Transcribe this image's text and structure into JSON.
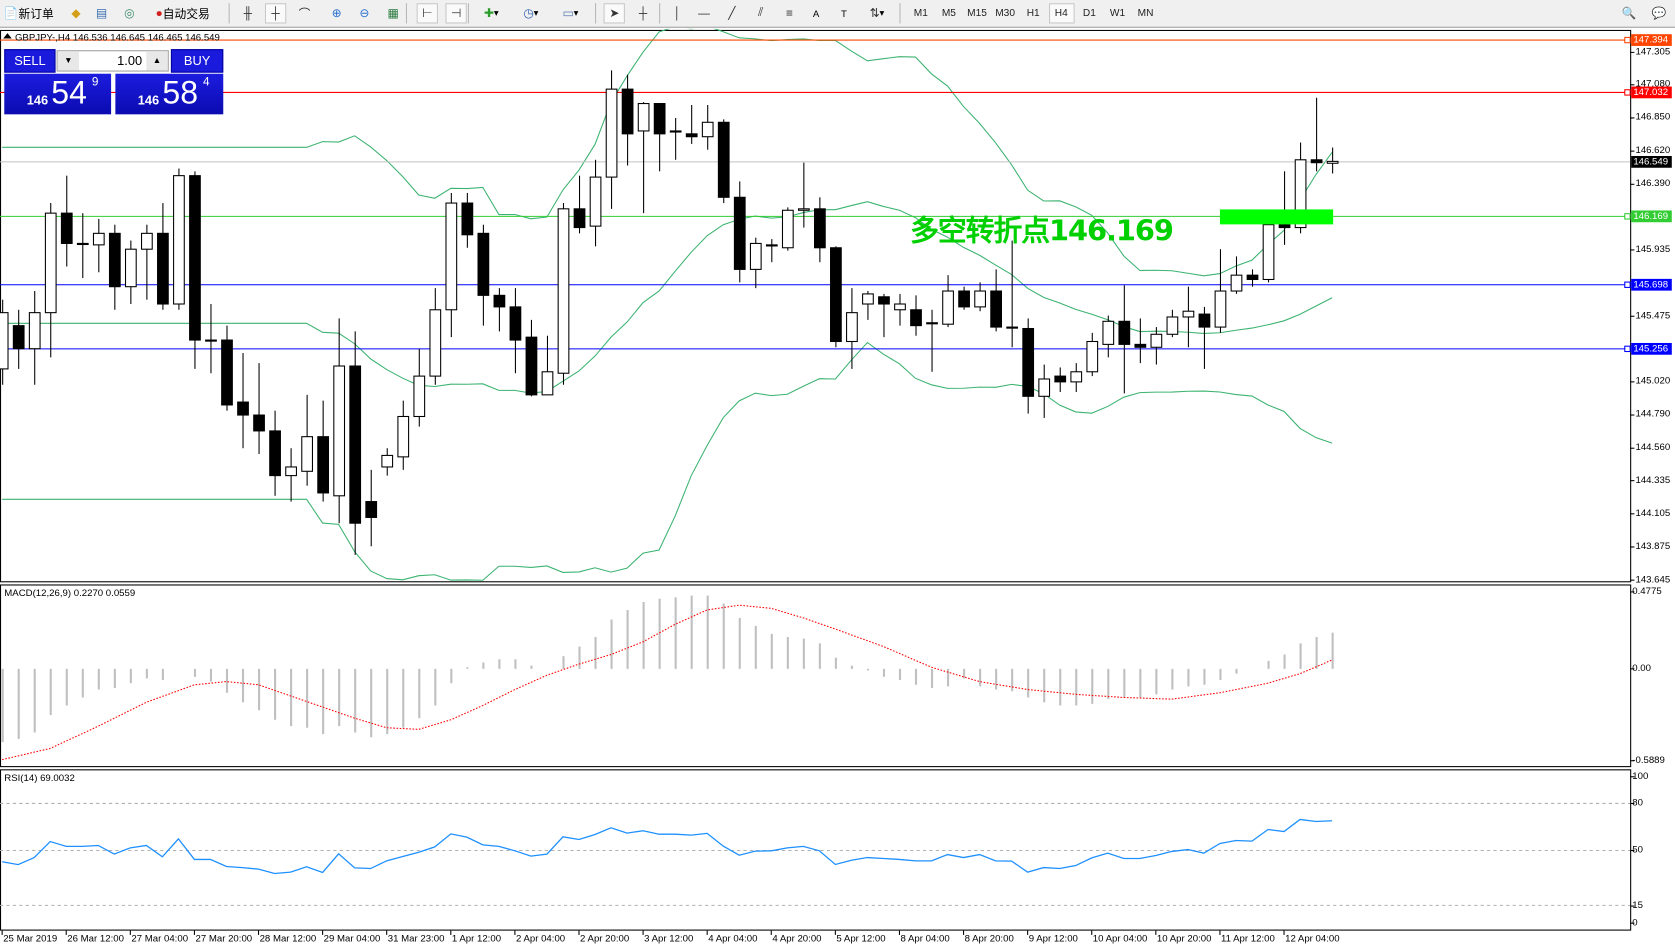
{
  "toolbar": {
    "items": [
      {
        "icon": "new-order-icon",
        "label": "新订单"
      },
      {
        "icon": "market-watch-icon",
        "label": ""
      },
      {
        "icon": "navigator-icon",
        "label": ""
      },
      {
        "icon": "signals-icon",
        "label": ""
      },
      {
        "icon": "auto-trading-icon",
        "label": "自动交易"
      },
      {
        "icon": "bar-chart-icon",
        "label": ""
      },
      {
        "icon": "candlestick-chart-icon",
        "label": "",
        "active": true
      },
      {
        "icon": "line-chart-icon",
        "label": ""
      },
      {
        "icon": "zoom-in-icon",
        "label": ""
      },
      {
        "icon": "zoom-out-icon",
        "label": ""
      },
      {
        "icon": "tile-windows-icon",
        "label": ""
      },
      {
        "icon": "chart-shift-icon",
        "label": "",
        "active": true
      },
      {
        "icon": "auto-scroll-icon",
        "label": "",
        "active": true
      },
      {
        "icon": "indicators-icon",
        "label": "▾"
      },
      {
        "icon": "periods-icon",
        "label": "▾"
      },
      {
        "icon": "templates-icon",
        "label": "▾"
      },
      {
        "icon": "cursor-icon",
        "label": "",
        "active": true
      },
      {
        "icon": "crosshair-icon",
        "label": ""
      },
      {
        "icon": "vertical-line-icon",
        "label": ""
      },
      {
        "icon": "horizontal-line-icon",
        "label": ""
      },
      {
        "icon": "trendline-icon",
        "label": ""
      },
      {
        "icon": "equidistant-channel-icon",
        "label": ""
      },
      {
        "icon": "fibonacci-icon",
        "label": ""
      },
      {
        "icon": "text-icon",
        "label": "A"
      },
      {
        "icon": "text-label-icon",
        "label": "T"
      },
      {
        "icon": "arrows-icon",
        "label": "▾"
      }
    ],
    "timeframes": [
      "M1",
      "M5",
      "M15",
      "M30",
      "H1",
      "H4",
      "D1",
      "W1",
      "MN"
    ],
    "active_timeframe": "H4",
    "right_icons": [
      "search-icon",
      "chat-icon"
    ]
  },
  "chart": {
    "header": "GBPJPY-,H4  146.536 146.645 146.465 146.549",
    "trade_panel": {
      "sell_label": "SELL",
      "buy_label": "BUY",
      "lot": "1.00",
      "sell_price": {
        "prefix": "146",
        "big": "54",
        "sup": "9"
      },
      "buy_price": {
        "prefix": "146",
        "big": "58",
        "sup": "4"
      }
    },
    "annotation": {
      "text": "多空转折点146.169",
      "color": "#00ff00"
    }
  },
  "chart_data": [
    {
      "type": "candlestick",
      "symbol": "GBPJPY-",
      "timeframe": "H4",
      "ylim": [
        143.645,
        147.394
      ],
      "y_ticks": [
        "147.305",
        "147.080",
        "146.850",
        "146.620",
        "146.390",
        "145.935",
        "145.475",
        "145.020",
        "144.790",
        "144.560",
        "144.335",
        "144.105",
        "143.875",
        "143.645"
      ],
      "x_tick_labels": [
        "25 Mar 2019",
        "26 Mar 12:00",
        "27 Mar 04:00",
        "27 Mar 20:00",
        "28 Mar 12:00",
        "29 Mar 04:00",
        "31 Mar 23:00",
        "1 Apr 12:00",
        "2 Apr 04:00",
        "2 Apr 20:00",
        "3 Apr 12:00",
        "4 Apr 04:00",
        "4 Apr 20:00",
        "5 Apr 12:00",
        "8 Apr 04:00",
        "8 Apr 20:00",
        "9 Apr 12:00",
        "10 Apr 04:00",
        "10 Apr 20:00",
        "11 Apr 12:00",
        "12 Apr 04:00"
      ],
      "ohlc_columns": [
        "open",
        "high",
        "low",
        "close"
      ],
      "ohlc": [
        [
          145.11,
          145.59,
          145.0,
          145.5
        ],
        [
          145.41,
          145.52,
          145.11,
          145.25
        ],
        [
          145.25,
          145.65,
          145.0,
          145.5
        ],
        [
          145.5,
          146.26,
          145.19,
          146.19
        ],
        [
          146.19,
          146.45,
          145.82,
          145.98
        ],
        [
          145.98,
          146.19,
          145.74,
          145.98
        ],
        [
          145.97,
          146.15,
          145.78,
          146.05
        ],
        [
          146.05,
          146.11,
          145.52,
          145.68
        ],
        [
          145.68,
          146.0,
          145.56,
          145.94
        ],
        [
          145.94,
          146.11,
          145.59,
          146.05
        ],
        [
          146.05,
          146.26,
          145.52,
          145.56
        ],
        [
          145.56,
          146.5,
          145.52,
          146.45
        ],
        [
          146.45,
          146.48,
          145.11,
          145.31
        ],
        [
          145.31,
          145.56,
          145.08,
          145.31
        ],
        [
          145.31,
          145.41,
          144.82,
          144.86
        ],
        [
          144.88,
          145.22,
          144.56,
          144.79
        ],
        [
          144.79,
          145.15,
          144.52,
          144.68
        ],
        [
          144.68,
          144.82,
          144.23,
          144.37
        ],
        [
          144.37,
          144.56,
          144.19,
          144.43
        ],
        [
          144.4,
          144.93,
          144.3,
          144.64
        ],
        [
          144.64,
          144.89,
          144.19,
          144.25
        ],
        [
          144.23,
          145.46,
          144.04,
          145.13
        ],
        [
          145.13,
          145.37,
          143.82,
          144.04
        ],
        [
          144.19,
          144.41,
          143.88,
          144.08
        ],
        [
          144.43,
          144.56,
          144.37,
          144.51
        ],
        [
          144.5,
          144.89,
          144.41,
          144.78
        ],
        [
          144.78,
          145.25,
          144.71,
          145.06
        ],
        [
          145.06,
          145.67,
          145.0,
          145.52
        ],
        [
          145.52,
          146.33,
          145.33,
          146.26
        ],
        [
          146.26,
          146.33,
          145.95,
          146.04
        ],
        [
          146.05,
          146.11,
          145.41,
          145.62
        ],
        [
          145.62,
          145.67,
          145.37,
          145.54
        ],
        [
          145.54,
          145.67,
          145.08,
          145.31
        ],
        [
          145.33,
          145.45,
          144.92,
          144.93
        ],
        [
          144.93,
          145.34,
          144.93,
          145.09
        ],
        [
          145.08,
          146.26,
          145.0,
          146.22
        ],
        [
          146.22,
          146.45,
          146.05,
          146.09
        ],
        [
          146.1,
          146.56,
          145.96,
          146.44
        ],
        [
          146.44,
          147.18,
          146.22,
          147.05
        ],
        [
          147.05,
          147.15,
          146.52,
          146.74
        ],
        [
          146.76,
          146.96,
          146.19,
          146.95
        ],
        [
          146.95,
          146.95,
          146.48,
          146.74
        ],
        [
          146.76,
          146.85,
          146.56,
          146.76
        ],
        [
          146.74,
          146.94,
          146.67,
          146.72
        ],
        [
          146.72,
          146.94,
          146.63,
          146.82
        ],
        [
          146.82,
          146.84,
          146.26,
          146.3
        ],
        [
          146.3,
          146.41,
          145.71,
          145.8
        ],
        [
          145.8,
          146.02,
          145.67,
          145.98
        ],
        [
          145.97,
          146.01,
          145.85,
          145.97
        ],
        [
          145.95,
          146.23,
          145.93,
          146.21
        ],
        [
          146.21,
          146.54,
          146.09,
          146.22
        ],
        [
          146.22,
          146.3,
          145.85,
          145.95
        ],
        [
          145.95,
          145.96,
          145.26,
          145.3
        ],
        [
          145.3,
          145.67,
          145.11,
          145.5
        ],
        [
          145.56,
          145.65,
          145.45,
          145.63
        ],
        [
          145.61,
          145.63,
          145.33,
          145.56
        ],
        [
          145.52,
          145.63,
          145.41,
          145.56
        ],
        [
          145.52,
          145.62,
          145.34,
          145.41
        ],
        [
          145.43,
          145.52,
          145.09,
          145.43
        ],
        [
          145.42,
          145.76,
          145.4,
          145.65
        ],
        [
          145.65,
          145.68,
          145.52,
          145.54
        ],
        [
          145.54,
          145.71,
          145.51,
          145.65
        ],
        [
          145.65,
          145.8,
          145.37,
          145.4
        ],
        [
          145.4,
          146.0,
          145.26,
          145.4
        ],
        [
          145.39,
          145.46,
          144.8,
          144.92
        ],
        [
          144.92,
          145.14,
          144.77,
          145.04
        ],
        [
          145.06,
          145.12,
          144.95,
          145.02
        ],
        [
          145.02,
          145.15,
          144.95,
          145.09
        ],
        [
          145.09,
          145.36,
          145.06,
          145.3
        ],
        [
          145.28,
          145.48,
          145.19,
          145.44
        ],
        [
          145.44,
          145.69,
          144.94,
          145.28
        ],
        [
          145.28,
          145.46,
          145.15,
          145.26
        ],
        [
          145.26,
          145.4,
          145.14,
          145.35
        ],
        [
          145.35,
          145.52,
          145.33,
          145.47
        ],
        [
          145.47,
          145.68,
          145.26,
          145.51
        ],
        [
          145.49,
          145.54,
          145.11,
          145.4
        ],
        [
          145.4,
          145.94,
          145.36,
          145.65
        ],
        [
          145.65,
          145.89,
          145.63,
          145.76
        ],
        [
          145.76,
          145.8,
          145.68,
          145.73
        ],
        [
          145.73,
          146.13,
          145.71,
          146.11
        ],
        [
          146.11,
          146.48,
          145.97,
          146.09
        ],
        [
          146.09,
          146.68,
          146.05,
          146.56
        ],
        [
          146.56,
          146.99,
          146.48,
          146.54
        ],
        [
          146.536,
          146.645,
          146.465,
          146.549
        ]
      ],
      "bollinger_period": 20,
      "bollinger_color": "#3cb371",
      "bid": "146.549",
      "horizontal_lines": [
        {
          "price": "147.394",
          "color": "#ff4500"
        },
        {
          "price": "147.032",
          "color": "#ff0000"
        },
        {
          "price": "146.169",
          "color": "#32cd32"
        },
        {
          "price": "145.698",
          "color": "#0000ff"
        },
        {
          "price": "145.256",
          "color": "#0000ff"
        }
      ],
      "bid_line_color": "#c0c0c0"
    },
    {
      "type": "bar+line",
      "title": "MACD(12,26,9) 0.2270 0.0559",
      "ylim": [
        -0.5889,
        0.4775
      ],
      "y_ticks": [
        "0.4775",
        "0.00",
        "-0.5889"
      ],
      "histogram_color": "#c0c0c0",
      "signal_color": "#ff0000",
      "histogram": [
        -0.46,
        -0.44,
        -0.4,
        -0.29,
        -0.23,
        -0.18,
        -0.13,
        -0.12,
        -0.09,
        -0.06,
        -0.07,
        0.0,
        -0.05,
        -0.08,
        -0.15,
        -0.21,
        -0.26,
        -0.32,
        -0.36,
        -0.37,
        -0.41,
        -0.36,
        -0.4,
        -0.43,
        -0.41,
        -0.37,
        -0.31,
        -0.23,
        -0.09,
        0.01,
        0.04,
        0.06,
        0.06,
        0.02,
        0.0,
        0.08,
        0.14,
        0.2,
        0.31,
        0.37,
        0.42,
        0.44,
        0.45,
        0.46,
        0.46,
        0.41,
        0.32,
        0.27,
        0.22,
        0.2,
        0.19,
        0.16,
        0.07,
        0.02,
        -0.01,
        -0.05,
        -0.07,
        -0.1,
        -0.12,
        -0.11,
        -0.06,
        -0.11,
        -0.13,
        -0.14,
        -0.18,
        -0.21,
        -0.23,
        -0.23,
        -0.22,
        -0.19,
        -0.18,
        -0.18,
        -0.16,
        -0.13,
        -0.11,
        -0.1,
        -0.07,
        -0.03,
        0.0,
        0.05,
        0.09,
        0.16,
        0.2,
        0.227
      ],
      "signal": [
        -0.57,
        -0.547,
        -0.523,
        -0.5,
        -0.453,
        -0.407,
        -0.36,
        -0.31,
        -0.26,
        -0.21,
        -0.173,
        -0.137,
        -0.1,
        -0.09,
        -0.08,
        -0.09,
        -0.1,
        -0.135,
        -0.17,
        -0.205,
        -0.24,
        -0.275,
        -0.31,
        -0.34,
        -0.37,
        -0.375,
        -0.38,
        -0.35,
        -0.32,
        -0.275,
        -0.23,
        -0.18,
        -0.13,
        -0.085,
        -0.04,
        -0.005,
        0.03,
        0.06,
        0.09,
        0.13,
        0.17,
        0.225,
        0.28,
        0.325,
        0.37,
        0.385,
        0.4,
        0.39,
        0.38,
        0.35,
        0.32,
        0.285,
        0.25,
        0.213,
        0.177,
        0.14,
        0.097,
        0.053,
        0.01,
        -0.02,
        -0.05,
        -0.08,
        -0.097,
        -0.113,
        -0.13,
        -0.14,
        -0.15,
        -0.16,
        -0.167,
        -0.173,
        -0.18,
        -0.183,
        -0.187,
        -0.19,
        -0.177,
        -0.163,
        -0.15,
        -0.13,
        -0.11,
        -0.09,
        -0.06,
        -0.03,
        0.013,
        0.0559
      ]
    },
    {
      "type": "line",
      "title": "RSI(14) 69.0032",
      "ylim": [
        0,
        100
      ],
      "y_ticks": [
        "100",
        "80",
        "50",
        "15",
        "0"
      ],
      "levels": [
        80,
        50,
        15
      ],
      "color": "#1e90ff",
      "values": [
        42.8,
        41,
        45.5,
        55.7,
        52.6,
        52.6,
        53.2,
        47.7,
        51.7,
        53.2,
        46,
        57.4,
        44.3,
        44.3,
        39.8,
        39.1,
        38.1,
        35.3,
        36.2,
        39.6,
        36,
        47.9,
        38.9,
        38.5,
        43.4,
        46.2,
        48.9,
        52.3,
        60.6,
        58.5,
        53.6,
        52.6,
        49.8,
        46.4,
        47.7,
        58.7,
        57,
        60.2,
        64.5,
        61.1,
        62.6,
        60.4,
        60.4,
        59.8,
        60.9,
        52.8,
        47,
        49.6,
        49.8,
        51.7,
        52.6,
        49.8,
        41.1,
        43.8,
        45.5,
        44.9,
        44.3,
        43.4,
        43.4,
        47.4,
        45.5,
        47.4,
        43.4,
        43.2,
        36.2,
        39.1,
        38.5,
        40.4,
        45.3,
        48.3,
        44.9,
        44.9,
        46.8,
        49.4,
        50.6,
        48.3,
        54.5,
        56.4,
        56,
        63.4,
        62.1,
        69.8,
        68.5,
        69.0032
      ]
    }
  ]
}
